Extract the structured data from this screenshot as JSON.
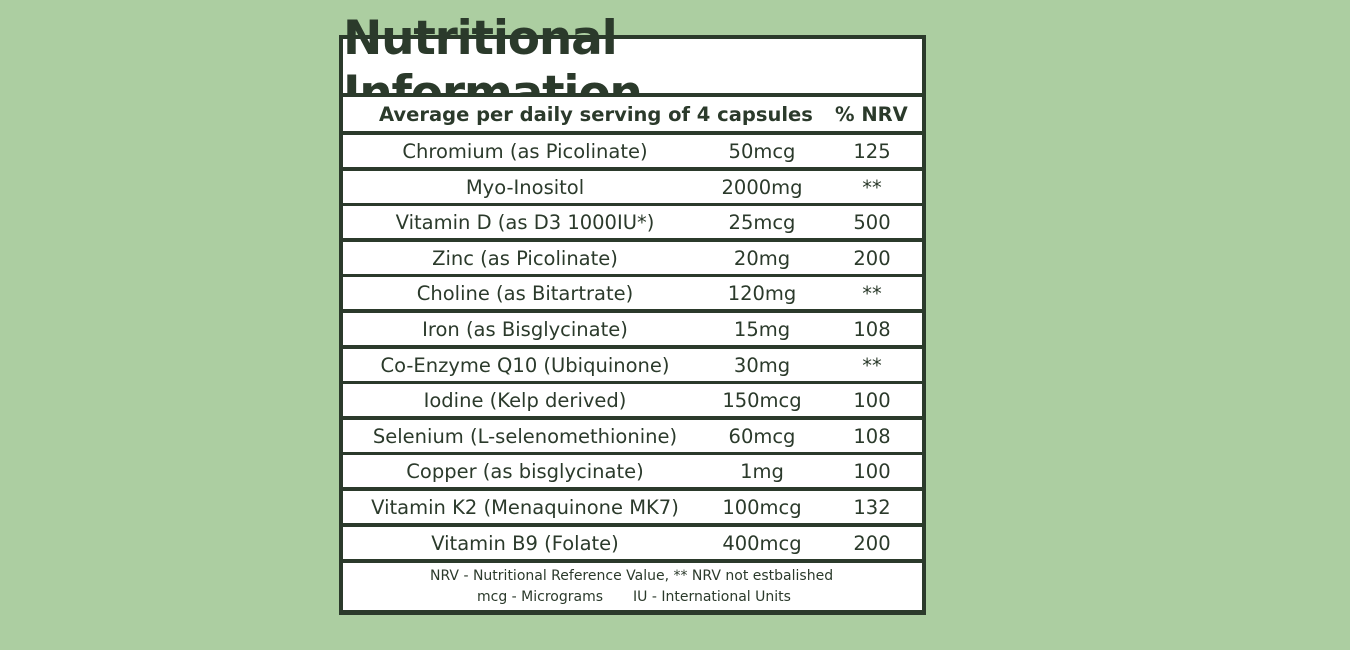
{
  "label": {
    "title": "Nutritional Information",
    "header": {
      "serving": "Average per daily serving of 4 capsules",
      "nrv": "% NRV"
    },
    "rows": [
      {
        "name": "Chromium (as Picolinate)",
        "amount": "50mcg",
        "nrv": "125"
      },
      {
        "name": "Myo-Inositol",
        "amount": "2000mg",
        "nrv": "**"
      },
      {
        "name": "Vitamin D (as D3 1000IU*)",
        "amount": "25mcg",
        "nrv": "500"
      },
      {
        "name": "Zinc (as Picolinate)",
        "amount": "20mg",
        "nrv": "200"
      },
      {
        "name": "Choline (as Bitartrate)",
        "amount": "120mg",
        "nrv": "**"
      },
      {
        "name": "Iron (as Bisglycinate)",
        "amount": "15mg",
        "nrv": "108"
      },
      {
        "name": "Co-Enzyme Q10 (Ubiquinone)",
        "amount": "30mg",
        "nrv": "**"
      },
      {
        "name": "Iodine (Kelp derived)",
        "amount": "150mcg",
        "nrv": "100"
      },
      {
        "name": "Selenium (L-selenomethionine)",
        "amount": "60mcg",
        "nrv": "108"
      },
      {
        "name": "Copper (as bisglycinate)",
        "amount": "1mg",
        "nrv": "100"
      },
      {
        "name": "Vitamin K2 (Menaquinone MK7)",
        "amount": "100mcg",
        "nrv": "132"
      },
      {
        "name": "Vitamin B9 (Folate)",
        "amount": "400mcg",
        "nrv": "200"
      }
    ],
    "footer": {
      "line1": "NRV - Nutritional Reference Value, ** NRV not estbalished",
      "line2a": "mcg - Micrograms",
      "line2b": "IU - International Units"
    }
  },
  "colors": {
    "background": "#accea1",
    "border": "#2b3a2b",
    "text": "#2b3a2b",
    "panel": "#ffffff"
  }
}
